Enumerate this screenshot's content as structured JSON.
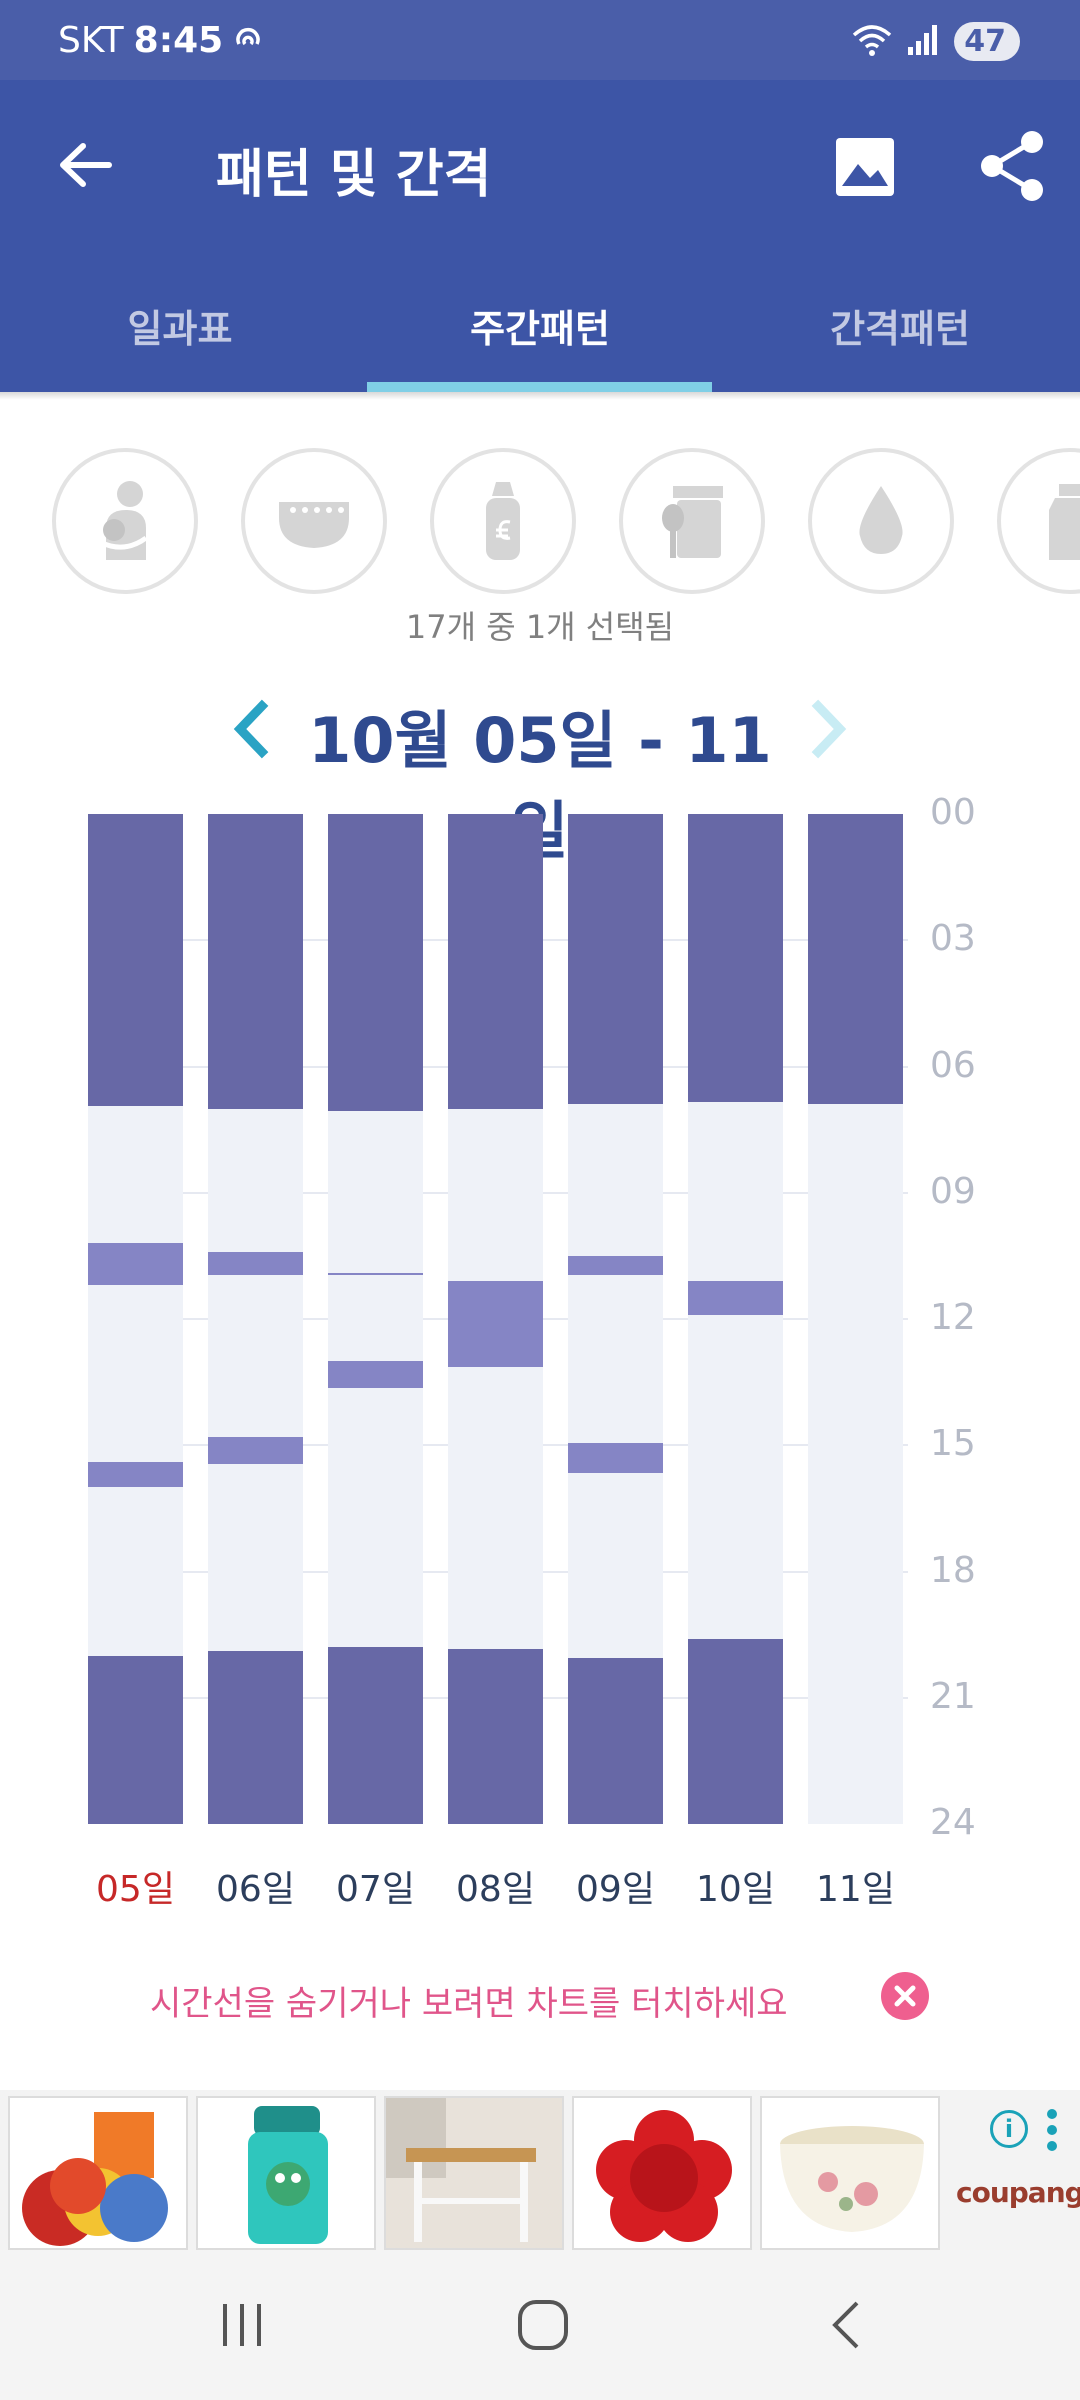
{
  "status_bar": {
    "carrier": "SKT",
    "time": "8:45",
    "battery": "47"
  },
  "app_bar": {
    "title": "패턴 및 간격"
  },
  "tabs": [
    {
      "label": "일과표",
      "active": false
    },
    {
      "label": "주간패턴",
      "active": true
    },
    {
      "label": "간격패턴",
      "active": false
    }
  ],
  "categories": [
    "breastfeeding-icon",
    "diaper-icon",
    "bottle-icon",
    "baby-food-icon",
    "water-drop-icon",
    "milk-bottle-icon"
  ],
  "selection_text": "17개 중 1개 선택됨",
  "date_range": "10월 05일 - 11일",
  "chart_data": {
    "type": "bar",
    "orientation": "vertical-timeline",
    "y_unit": "hour",
    "ylim": [
      0,
      24
    ],
    "y_ticks": [
      "00",
      "03",
      "06",
      "09",
      "12",
      "15",
      "18",
      "21",
      "24"
    ],
    "categories": [
      "05일",
      "06일",
      "07일",
      "08일",
      "09일",
      "10일",
      "11일"
    ],
    "highlight_category": "05일",
    "colors": {
      "night": "#6768a6",
      "nap": "#8585c5",
      "empty": "#eff2f8",
      "highlight_label": "#c62828"
    },
    "series": [
      {
        "segments": [
          [
            0,
            6.95
          ],
          [
            10.2,
            11.2
          ],
          [
            15.4,
            16.0
          ],
          [
            20.0,
            24
          ]
        ]
      },
      {
        "segments": [
          [
            0,
            7.0
          ],
          [
            10.4,
            10.95
          ],
          [
            14.8,
            15.45
          ],
          [
            19.9,
            24
          ]
        ]
      },
      {
        "segments": [
          [
            0,
            7.05
          ],
          [
            10.9,
            10.95
          ],
          [
            13.0,
            13.65
          ],
          [
            19.8,
            24
          ]
        ]
      },
      {
        "segments": [
          [
            0,
            7.0
          ],
          [
            11.1,
            13.15
          ],
          [
            19.85,
            24
          ]
        ]
      },
      {
        "segments": [
          [
            0,
            6.9
          ],
          [
            10.5,
            10.95
          ],
          [
            14.95,
            15.65
          ],
          [
            20.05,
            24
          ]
        ]
      },
      {
        "segments": [
          [
            0,
            6.85
          ],
          [
            11.1,
            11.9
          ],
          [
            19.6,
            24
          ]
        ]
      },
      {
        "segments": [
          [
            0,
            6.9
          ]
        ]
      }
    ]
  },
  "hint": {
    "text": "시간선을 숨기거나 보려면 차트를 터치하세요"
  },
  "ad": {
    "brand": "coupang",
    "items": [
      "colorful-plates-product",
      "kids-water-bottle-product",
      "kitchen-cart-product",
      "red-flower-plate-product",
      "floral-bowl-product"
    ]
  }
}
